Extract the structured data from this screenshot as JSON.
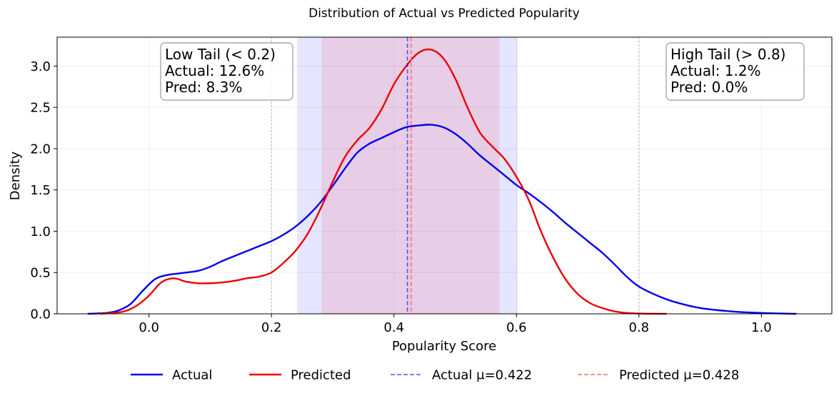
{
  "chart_data": {
    "type": "line",
    "title": "Distribution of Actual vs Predicted Popularity",
    "xlabel": "Popularity Score",
    "ylabel": "Density",
    "xlim": [
      -0.15,
      1.115
    ],
    "ylim": [
      0,
      3.35
    ],
    "xticks": [
      0.0,
      0.2,
      0.4,
      0.6,
      0.8,
      1.0
    ],
    "xtick_labels": [
      "0.0",
      "0.2",
      "0.4",
      "0.6",
      "0.8",
      "1.0"
    ],
    "yticks": [
      0.0,
      0.5,
      1.0,
      1.5,
      2.0,
      2.5,
      3.0
    ],
    "ytick_labels": [
      "0.0",
      "0.5",
      "1.0",
      "1.5",
      "2.0",
      "2.5",
      "3.0"
    ],
    "grid": true,
    "series": [
      {
        "name": "Actual",
        "color": "#0000ee",
        "x": [
          -0.1,
          -0.07,
          -0.05,
          -0.03,
          -0.01,
          0.01,
          0.03,
          0.05,
          0.08,
          0.1,
          0.12,
          0.15,
          0.18,
          0.2,
          0.22,
          0.24,
          0.26,
          0.28,
          0.3,
          0.32,
          0.34,
          0.36,
          0.38,
          0.4,
          0.42,
          0.44,
          0.46,
          0.48,
          0.5,
          0.52,
          0.54,
          0.56,
          0.58,
          0.6,
          0.62,
          0.64,
          0.66,
          0.68,
          0.7,
          0.72,
          0.74,
          0.76,
          0.78,
          0.8,
          0.83,
          0.86,
          0.9,
          0.95,
          1.0,
          1.057
        ],
        "y": [
          0.0,
          0.01,
          0.04,
          0.12,
          0.28,
          0.42,
          0.47,
          0.49,
          0.52,
          0.57,
          0.64,
          0.73,
          0.82,
          0.88,
          0.96,
          1.06,
          1.19,
          1.35,
          1.55,
          1.76,
          1.95,
          2.06,
          2.13,
          2.2,
          2.26,
          2.28,
          2.29,
          2.26,
          2.18,
          2.06,
          1.92,
          1.8,
          1.68,
          1.56,
          1.46,
          1.35,
          1.23,
          1.1,
          0.98,
          0.86,
          0.74,
          0.6,
          0.45,
          0.33,
          0.22,
          0.14,
          0.07,
          0.03,
          0.01,
          0.0
        ]
      },
      {
        "name": "Predicted",
        "color": "#ee0000",
        "x": [
          -0.08,
          -0.06,
          -0.04,
          -0.02,
          0.0,
          0.02,
          0.04,
          0.06,
          0.08,
          0.1,
          0.12,
          0.14,
          0.16,
          0.18,
          0.2,
          0.22,
          0.24,
          0.26,
          0.28,
          0.3,
          0.32,
          0.34,
          0.36,
          0.38,
          0.4,
          0.42,
          0.44,
          0.46,
          0.48,
          0.5,
          0.52,
          0.54,
          0.56,
          0.58,
          0.6,
          0.62,
          0.64,
          0.66,
          0.68,
          0.7,
          0.72,
          0.74,
          0.76,
          0.78,
          0.8,
          0.82,
          0.845
        ],
        "y": [
          0.0,
          0.01,
          0.03,
          0.1,
          0.22,
          0.38,
          0.43,
          0.39,
          0.37,
          0.37,
          0.38,
          0.4,
          0.43,
          0.45,
          0.5,
          0.62,
          0.77,
          0.98,
          1.27,
          1.6,
          1.9,
          2.1,
          2.25,
          2.48,
          2.78,
          3.0,
          3.16,
          3.2,
          3.1,
          2.85,
          2.5,
          2.2,
          2.03,
          1.88,
          1.66,
          1.38,
          1.0,
          0.68,
          0.42,
          0.24,
          0.13,
          0.07,
          0.03,
          0.01,
          0.004,
          0.001,
          0.0
        ]
      }
    ],
    "mean_lines": [
      {
        "name": "Actual μ=0.422",
        "x": 0.422,
        "color": "#0000ee"
      },
      {
        "name": "Predicted μ=0.428",
        "x": 0.428,
        "color": "#ff6b6b"
      }
    ],
    "bands": [
      {
        "name": "actual-iqr-band",
        "x0": 0.242,
        "x1": 0.602,
        "color": "#0000ff",
        "opacity": 0.1
      },
      {
        "name": "predicted-iqr-band",
        "x0": 0.282,
        "x1": 0.572,
        "color": "#ff0000",
        "opacity": 0.1
      }
    ],
    "threshold_lines": [
      0.2,
      0.8
    ],
    "annotations": [
      {
        "name": "low-tail-box",
        "lines": [
          "Low Tail (< 0.2)",
          "Actual: 12.6%",
          "Pred: 8.3%"
        ],
        "position": "top-left"
      },
      {
        "name": "high-tail-box",
        "lines": [
          "High Tail (> 0.8)",
          "Actual: 1.2%",
          "Pred: 0.0%"
        ],
        "position": "top-right"
      }
    ],
    "legend": {
      "placement": "bottom-center",
      "entries": [
        {
          "label": "Actual",
          "style": "solid",
          "color": "#0000ee"
        },
        {
          "label": "Predicted",
          "style": "solid",
          "color": "#ee0000"
        },
        {
          "label": "Actual μ=0.422",
          "style": "dashed",
          "color": "#6f6fee"
        },
        {
          "label": "Predicted μ=0.428",
          "style": "dashed",
          "color": "#ff8080"
        }
      ]
    }
  }
}
